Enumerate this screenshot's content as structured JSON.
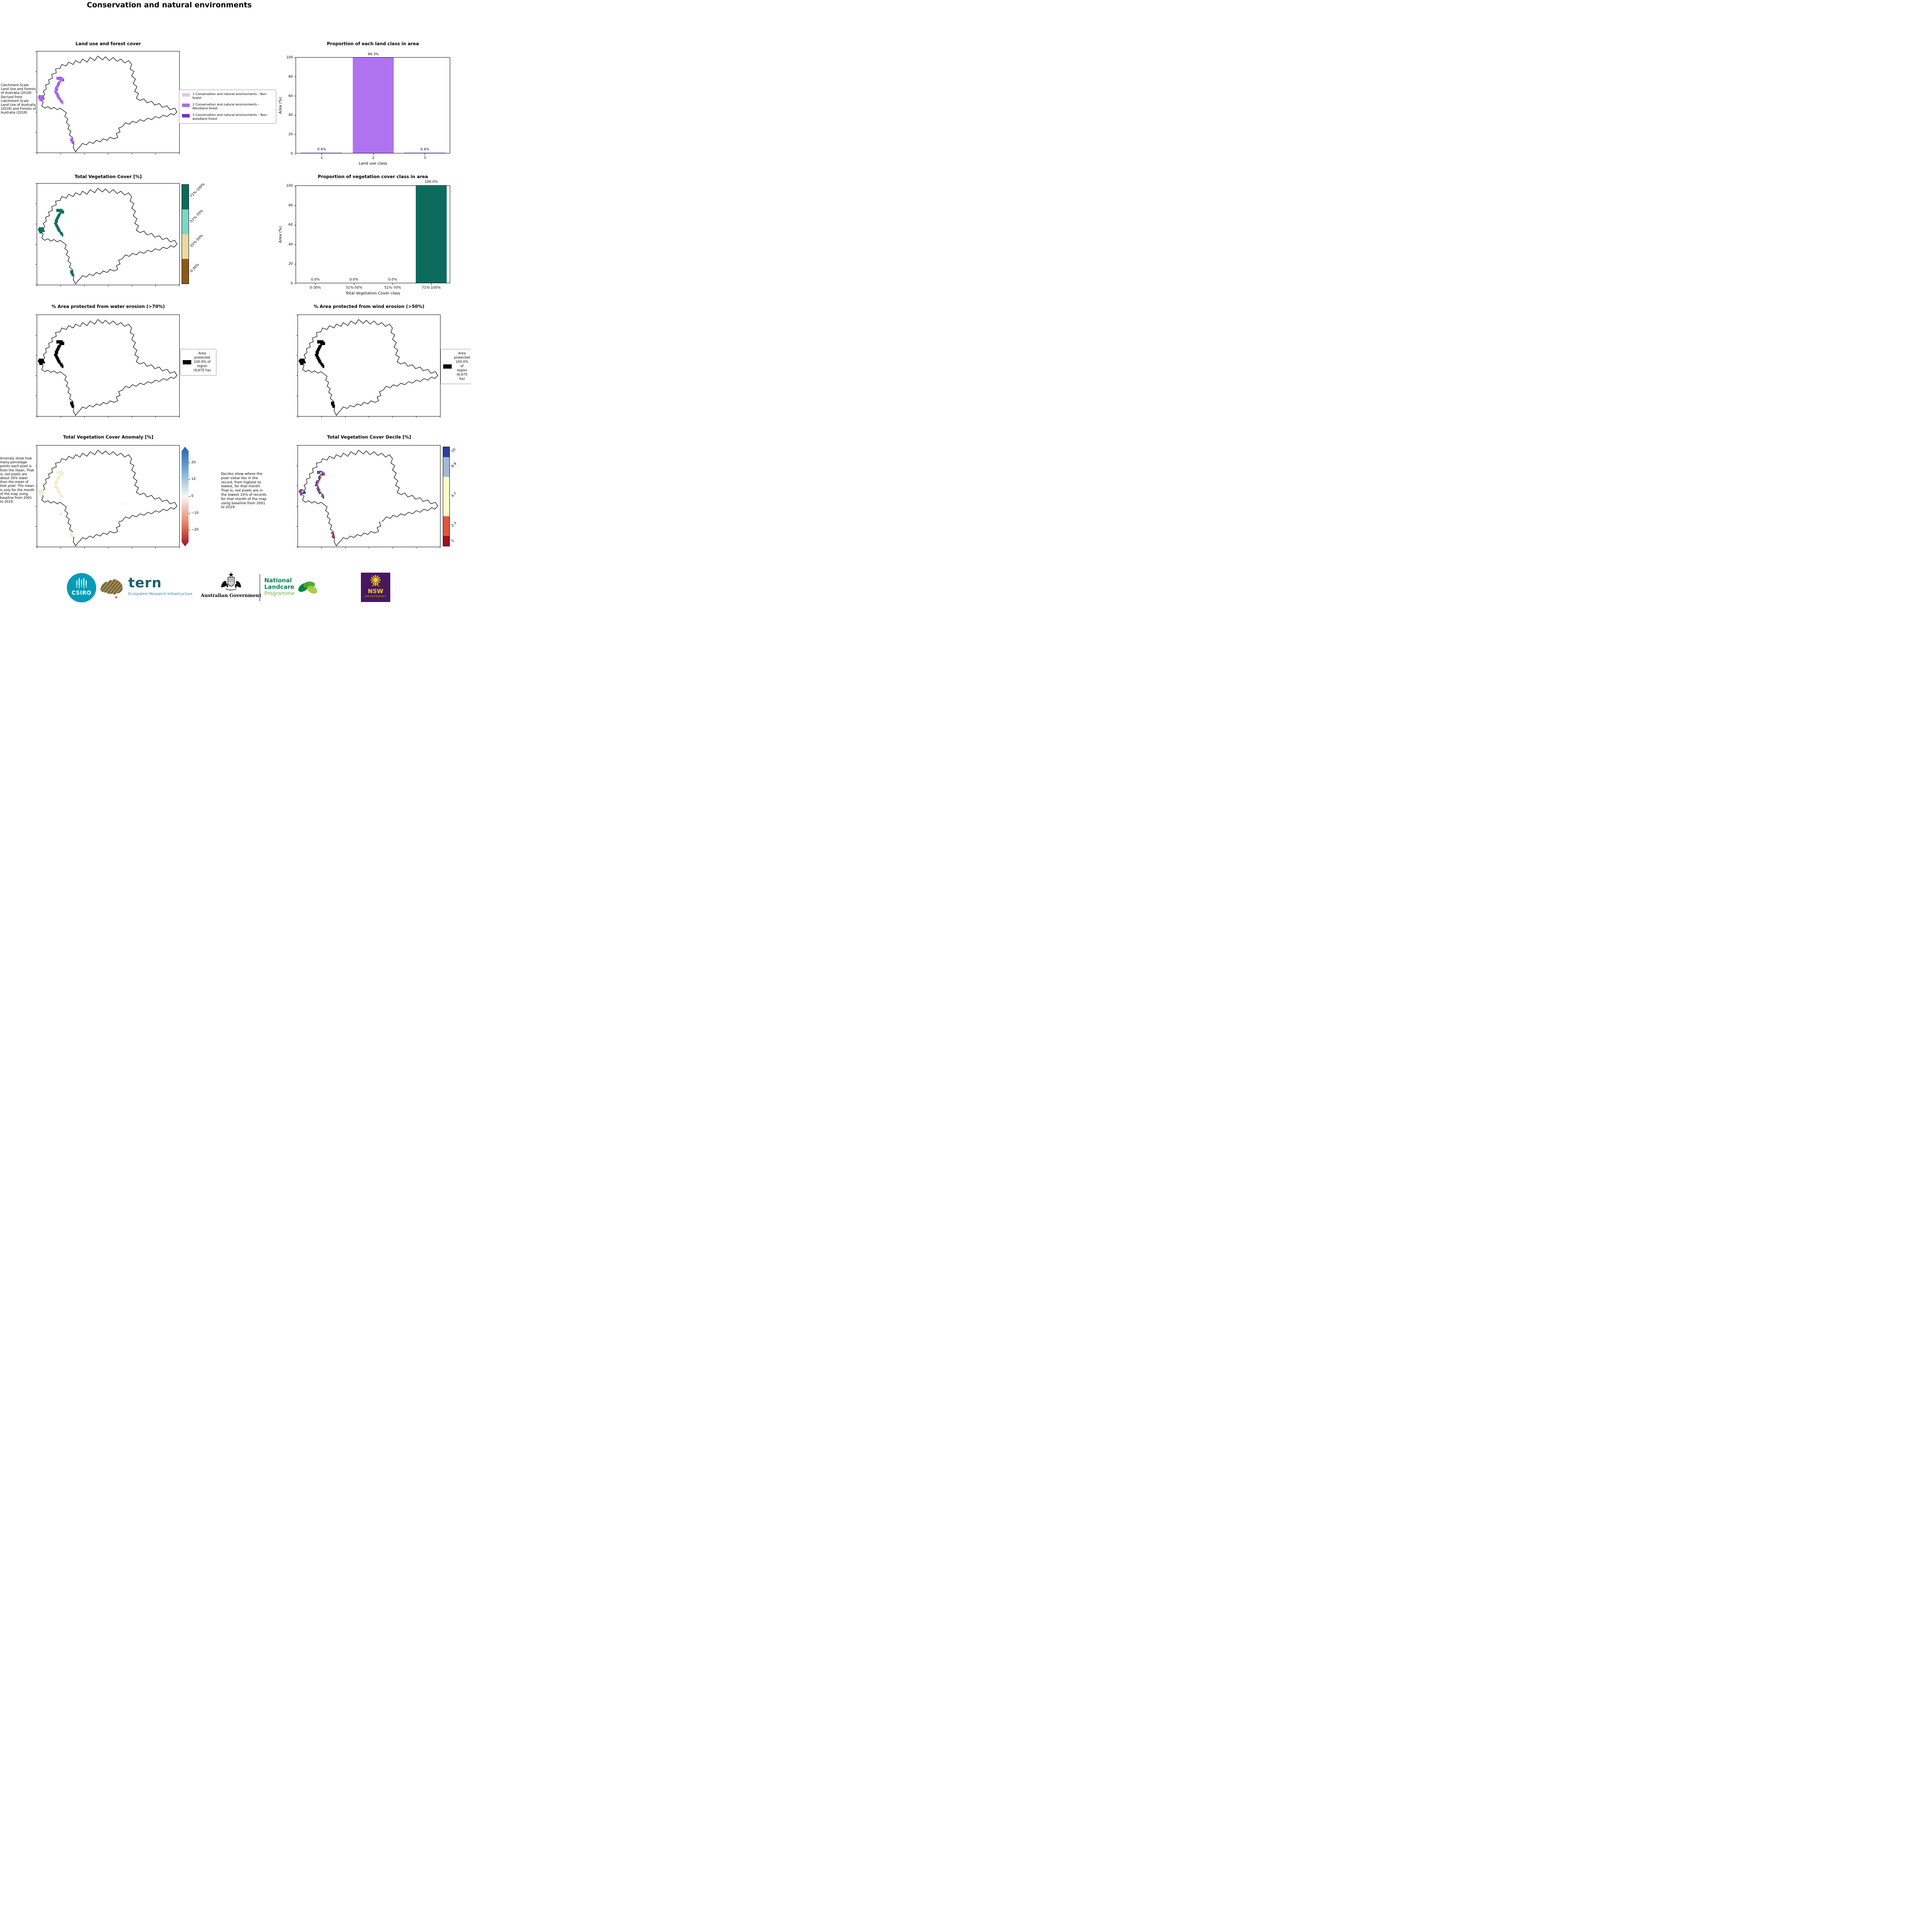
{
  "title": "Conservation and natural environments",
  "land_use": {
    "title": "Land use and forest cover",
    "note": "Catchment Scale Land Use and Forests of Australia (2018) Derived from Catchment Scale Land Use of Australia (2018) and Forests of Australia (2018)",
    "legend": [
      {
        "label": "1 Conservation and natural environments - Non-forest",
        "color": "#dcc6f0"
      },
      {
        "label": "2 Conservation and natural environments – Woodland forest",
        "color": "#a96bee"
      },
      {
        "label": "3 Conservation and natural environments – Non-woodland forest",
        "color": "#7a2fc0"
      }
    ]
  },
  "veg_cover": {
    "title": "Total Vegetation Cover [%]",
    "colorbar": [
      {
        "label": "0-30%",
        "color": "#8a5a19"
      },
      {
        "label": "31%-50%",
        "color": "#ead9a2"
      },
      {
        "label": "51%-70%",
        "color": "#7fd6c3"
      },
      {
        "label": "71%-100%",
        "color": "#0d6b5e"
      }
    ]
  },
  "water_erosion": {
    "title": "% Area protected from water erosion (>70%)",
    "legend_text": "Area\nprotected\n100.0% of\nregion\n(6,675 ha)",
    "legend_color": "#000000"
  },
  "wind_erosion": {
    "title": "% Area protected from wind erosion (>50%)",
    "legend_text": "Area\nprotected\n100.0% of\nregion\n(6,675 ha)",
    "legend_color": "#000000"
  },
  "anomaly": {
    "title": "Total Vegetation Cover Anomaly [%]",
    "note": "Anomaly show how many percetage points each pixel is from the mean. That is, red pixels are about 20% lower than the mean of that pixel. The mean is only for the month of the map using baseline from 2001 to 2019.",
    "cb_ticks": [
      "20",
      "10",
      "0",
      "−10",
      "−20"
    ]
  },
  "decile": {
    "title": "Total Vegetation Cover Decile [%]",
    "note": "Deciles show where the pixel value lies in the record, from highest to lowest, for that month. That is, red pixels are in the lowest 10% of records for that month of the map using baseline from 2001 to 2019.",
    "colorbar": [
      {
        "label": "10",
        "color": "#2c3e9c"
      },
      {
        "label": "8-9",
        "color": "#a3b8d8"
      },
      {
        "label": "4-7",
        "color": "#fdfdc8"
      },
      {
        "label": "2-3",
        "color": "#e5543a"
      },
      {
        "label": "1",
        "color": "#9e1020"
      }
    ]
  },
  "chart_data": [
    {
      "type": "bar",
      "title": "Proportion of each land class in area",
      "categories": [
        "1",
        "2",
        "3"
      ],
      "values": [
        0.4,
        99.3,
        0.4
      ],
      "bar_labels": [
        "0.4%",
        "99.3%",
        "0.4%"
      ],
      "xlabel": "Land use class",
      "ylabel": "Area (%)",
      "ylim": [
        0,
        100
      ],
      "yticks": [
        0,
        20,
        40,
        60,
        80,
        100
      ],
      "bar_color": "#b073f0",
      "legend_position": "none",
      "grid": false
    },
    {
      "type": "bar",
      "title": "Proportion of vegetation cover class in area",
      "categories": [
        "0-30%",
        "31%-50%",
        "51%-70%",
        "71%-100%"
      ],
      "values": [
        0.0,
        0.0,
        0.0,
        100.0
      ],
      "bar_labels": [
        "0.0%",
        "0.0%",
        "0.0%",
        "100.0%"
      ],
      "xlabel": "Total Vegetation Cover class",
      "ylabel": "Area (%)",
      "ylim": [
        0,
        100
      ],
      "yticks": [
        0,
        20,
        40,
        60,
        80,
        100
      ],
      "bar_color": "#0d6b5e",
      "legend_position": "none",
      "grid": false
    }
  ],
  "footer": {
    "csiro": "CSIRO",
    "tern": "tern",
    "tern_sub": "Ecosystem Research Infrastructure",
    "aus_gov": "Australian Government",
    "landcare_1": "National",
    "landcare_2": "Landcare",
    "landcare_3": "Programme",
    "nsw": "NSW",
    "nsw_sub": "GOVERNMENT"
  }
}
